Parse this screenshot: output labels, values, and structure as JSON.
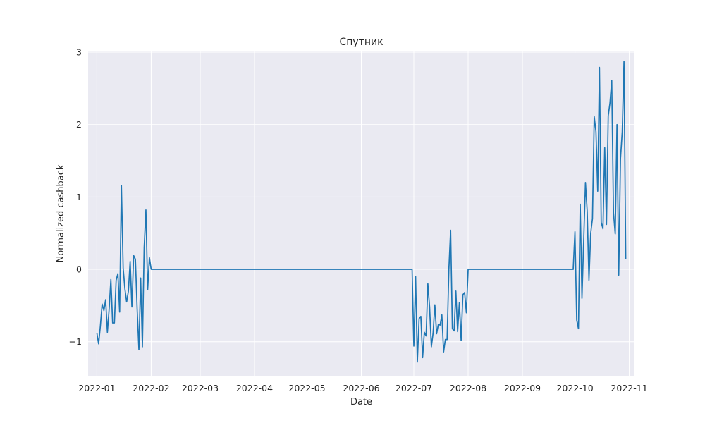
{
  "chart_data": {
    "type": "line",
    "title": "Спутник",
    "xlabel": "Date",
    "ylabel": "Normalized cashback",
    "xlim": [
      "2021-12-27",
      "2022-11-04"
    ],
    "ylim": [
      -1.48,
      3.02
    ],
    "x_ticks": [
      "2022-01",
      "2022-02",
      "2022-03",
      "2022-04",
      "2022-05",
      "2022-06",
      "2022-07",
      "2022-08",
      "2022-09",
      "2022-10",
      "2022-11"
    ],
    "y_ticks": [
      -1,
      0,
      1,
      2,
      3
    ],
    "y_tick_labels": [
      "−1",
      "0",
      "1",
      "2",
      "3"
    ],
    "grid": true,
    "series": [
      {
        "color": "#1f77b4",
        "points": [
          [
            "2022-01-01",
            -0.88
          ],
          [
            "2022-01-02",
            -1.03
          ],
          [
            "2022-01-03",
            -0.78
          ],
          [
            "2022-01-04",
            -0.48
          ],
          [
            "2022-01-05",
            -0.57
          ],
          [
            "2022-01-06",
            -0.42
          ],
          [
            "2022-01-07",
            -0.87
          ],
          [
            "2022-01-08",
            -0.55
          ],
          [
            "2022-01-09",
            -0.14
          ],
          [
            "2022-01-10",
            -0.74
          ],
          [
            "2022-01-11",
            -0.74
          ],
          [
            "2022-01-12",
            -0.15
          ],
          [
            "2022-01-13",
            -0.06
          ],
          [
            "2022-01-14",
            -0.59
          ],
          [
            "2022-01-15",
            1.16
          ],
          [
            "2022-01-16",
            0.02
          ],
          [
            "2022-01-17",
            -0.27
          ],
          [
            "2022-01-18",
            -0.45
          ],
          [
            "2022-01-19",
            -0.3
          ],
          [
            "2022-01-20",
            0.11
          ],
          [
            "2022-01-21",
            -0.52
          ],
          [
            "2022-01-22",
            0.19
          ],
          [
            "2022-01-23",
            0.14
          ],
          [
            "2022-01-24",
            -0.55
          ],
          [
            "2022-01-25",
            -1.11
          ],
          [
            "2022-01-26",
            -0.12
          ],
          [
            "2022-01-27",
            -1.07
          ],
          [
            "2022-01-28",
            0.3
          ],
          [
            "2022-01-29",
            0.82
          ],
          [
            "2022-01-30",
            -0.28
          ],
          [
            "2022-01-31",
            0.16
          ],
          [
            "2022-02-01",
            0.0
          ],
          [
            "2022-06-30",
            0.0
          ],
          [
            "2022-07-01",
            -1.06
          ],
          [
            "2022-07-02",
            -0.1
          ],
          [
            "2022-07-03",
            -1.28
          ],
          [
            "2022-07-04",
            -0.68
          ],
          [
            "2022-07-05",
            -0.65
          ],
          [
            "2022-07-06",
            -1.22
          ],
          [
            "2022-07-07",
            -0.87
          ],
          [
            "2022-07-08",
            -0.92
          ],
          [
            "2022-07-09",
            -0.2
          ],
          [
            "2022-07-10",
            -0.52
          ],
          [
            "2022-07-11",
            -1.07
          ],
          [
            "2022-07-12",
            -0.88
          ],
          [
            "2022-07-13",
            -0.49
          ],
          [
            "2022-07-14",
            -0.89
          ],
          [
            "2022-07-15",
            -0.76
          ],
          [
            "2022-07-16",
            -0.77
          ],
          [
            "2022-07-17",
            -0.63
          ],
          [
            "2022-07-18",
            -1.14
          ],
          [
            "2022-07-19",
            -0.97
          ],
          [
            "2022-07-20",
            -0.97
          ],
          [
            "2022-07-21",
            0.0
          ],
          [
            "2022-07-22",
            0.54
          ],
          [
            "2022-07-23",
            -0.82
          ],
          [
            "2022-07-24",
            -0.85
          ],
          [
            "2022-07-25",
            -0.3
          ],
          [
            "2022-07-26",
            -0.86
          ],
          [
            "2022-07-27",
            -0.46
          ],
          [
            "2022-07-28",
            -0.98
          ],
          [
            "2022-07-29",
            -0.35
          ],
          [
            "2022-07-30",
            -0.32
          ],
          [
            "2022-07-31",
            -0.6
          ],
          [
            "2022-08-01",
            0.0
          ],
          [
            "2022-09-30",
            0.0
          ],
          [
            "2022-10-01",
            0.52
          ],
          [
            "2022-10-02",
            -0.7
          ],
          [
            "2022-10-03",
            -0.82
          ],
          [
            "2022-10-04",
            0.9
          ],
          [
            "2022-10-05",
            -0.4
          ],
          [
            "2022-10-06",
            0.4
          ],
          [
            "2022-10-07",
            1.2
          ],
          [
            "2022-10-08",
            0.8
          ],
          [
            "2022-10-09",
            -0.15
          ],
          [
            "2022-10-10",
            0.5
          ],
          [
            "2022-10-11",
            0.7
          ],
          [
            "2022-10-12",
            2.11
          ],
          [
            "2022-10-13",
            1.9
          ],
          [
            "2022-10-14",
            1.08
          ],
          [
            "2022-10-15",
            2.79
          ],
          [
            "2022-10-16",
            0.65
          ],
          [
            "2022-10-17",
            0.56
          ],
          [
            "2022-10-18",
            1.68
          ],
          [
            "2022-10-19",
            0.62
          ],
          [
            "2022-10-20",
            2.12
          ],
          [
            "2022-10-21",
            2.3
          ],
          [
            "2022-10-22",
            2.61
          ],
          [
            "2022-10-23",
            0.78
          ],
          [
            "2022-10-24",
            0.49
          ],
          [
            "2022-10-25",
            2.0
          ],
          [
            "2022-10-26",
            -0.08
          ],
          [
            "2022-10-27",
            1.53
          ],
          [
            "2022-10-28",
            1.9
          ],
          [
            "2022-10-29",
            2.87
          ],
          [
            "2022-10-30",
            0.14
          ]
        ]
      }
    ]
  }
}
